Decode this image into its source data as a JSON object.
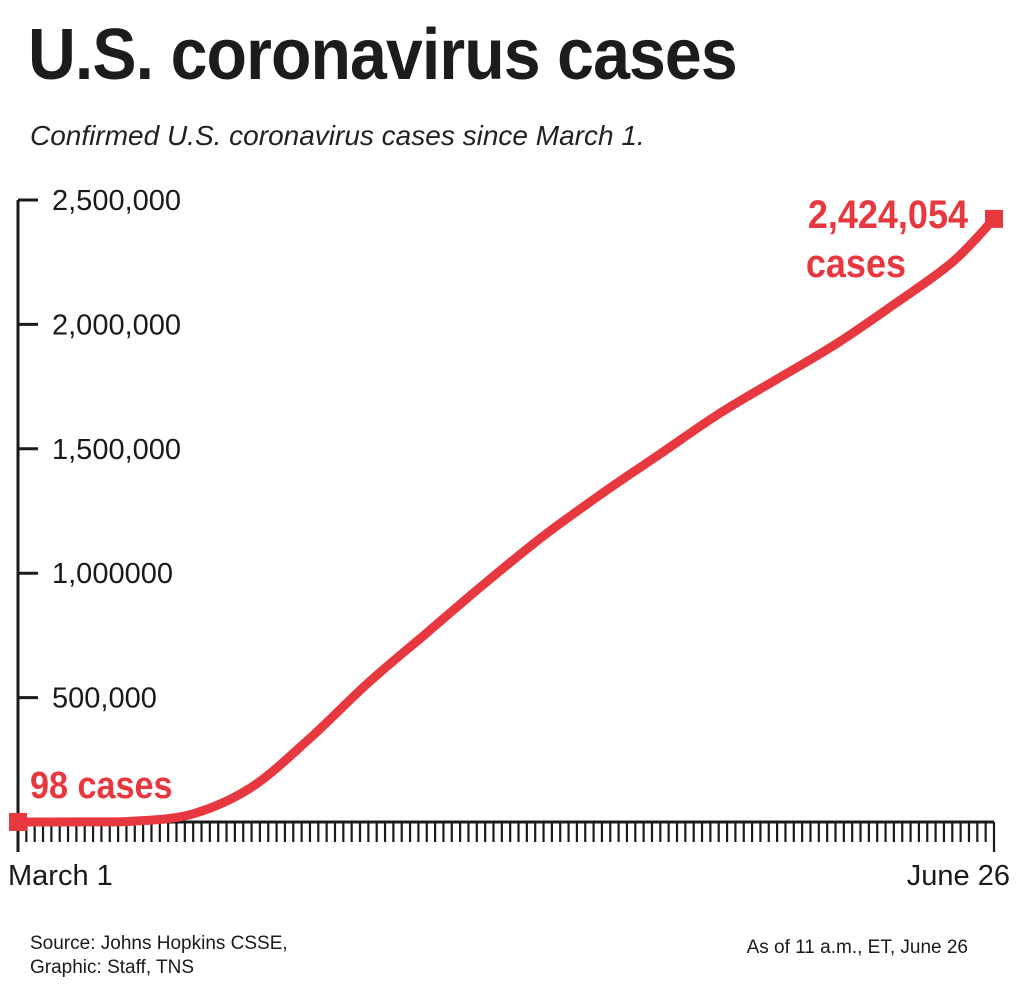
{
  "chart_data": {
    "type": "line",
    "title": "U.S. coronavirus cases",
    "subtitle": "Confirmed U.S. coronavirus cases since March 1.",
    "xlabel": "",
    "ylabel": "",
    "x_start": "March 1",
    "x_end": "June 26",
    "ylim": [
      0,
      2500000
    ],
    "yticks": [
      {
        "value": 500000,
        "label": "500,000"
      },
      {
        "value": 1000000,
        "label": "1,000000"
      },
      {
        "value": 1500000,
        "label": "1,500,000"
      },
      {
        "value": 2000000,
        "label": "2,000,000"
      },
      {
        "value": 2500000,
        "label": "2,500,000"
      }
    ],
    "grid": false,
    "series": [
      {
        "color": "#e8383f",
        "points": [
          [
            "March 1",
            98
          ],
          [
            "March 8",
            540
          ],
          [
            "March 15",
            3500
          ],
          [
            "March 22",
            33000
          ],
          [
            "March 29",
            140000
          ],
          [
            "April 5",
            337000
          ],
          [
            "April 12",
            560000
          ],
          [
            "April 19",
            760000
          ],
          [
            "April 26",
            960000
          ],
          [
            "May 3",
            1150000
          ],
          [
            "May 10",
            1320000
          ],
          [
            "May 17",
            1480000
          ],
          [
            "May 24",
            1640000
          ],
          [
            "May 31",
            1780000
          ],
          [
            "June 7",
            1920000
          ],
          [
            "June 14",
            2080000
          ],
          [
            "June 21",
            2250000
          ],
          [
            "June 26",
            2424054
          ]
        ]
      }
    ],
    "annotations": [
      {
        "label": "98 cases",
        "value": 98
      },
      {
        "label_line1": "2,424,054",
        "label_line2": "cases",
        "value": 2424054
      }
    ]
  },
  "footer": {
    "source_line1": "Source: Johns Hopkins CSSE,",
    "source_line2": "Graphic: Staff, TNS",
    "as_of": "As of 11 a.m., ET, June 26"
  },
  "colors": {
    "line": "#e8383f",
    "axis": "#1a1a1a",
    "text": "#1a1a1a"
  }
}
